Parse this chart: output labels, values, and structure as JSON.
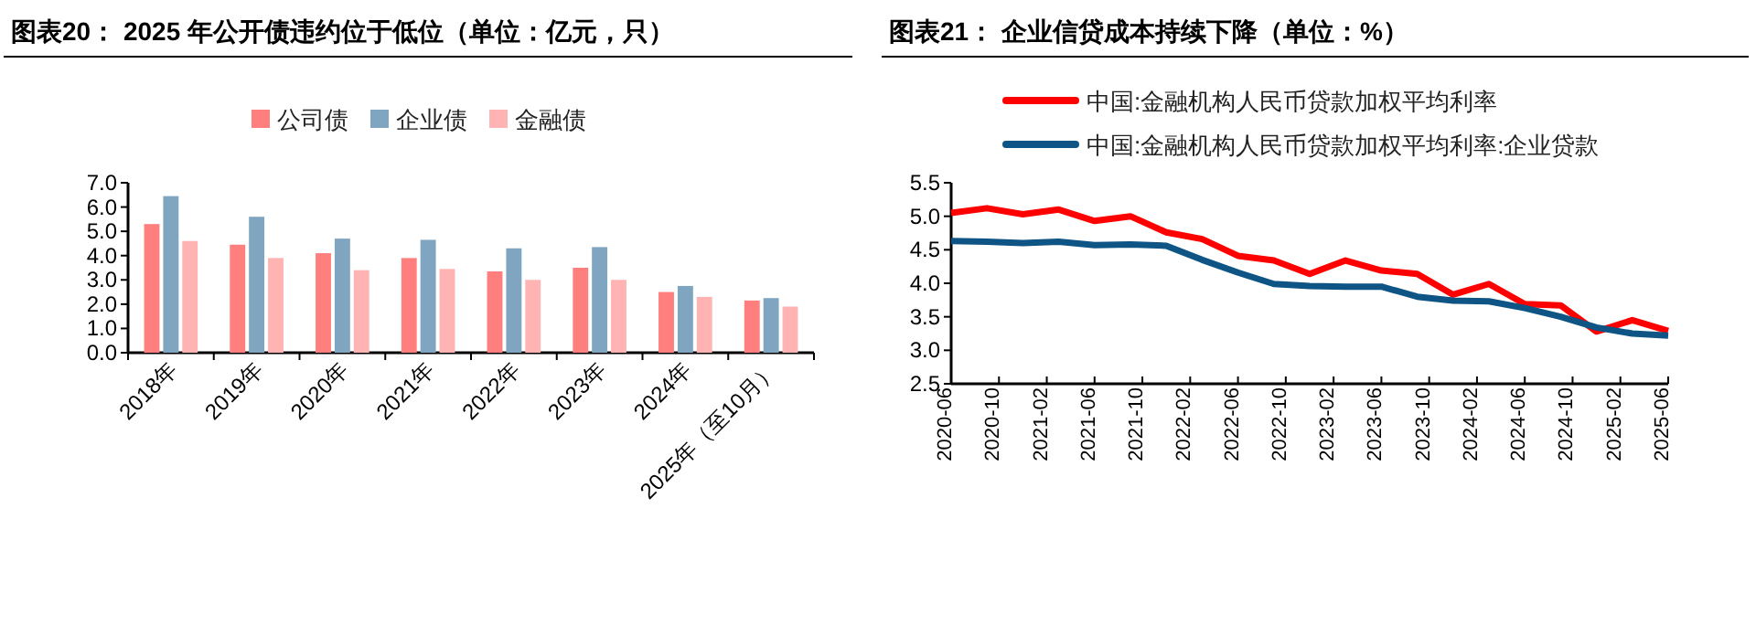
{
  "chart_data": [
    {
      "type": "bar",
      "title": "图表20： 2025 年公开债违约位于低位（单位：亿元，只）",
      "categories": [
        "2018年",
        "2019年",
        "2020年",
        "2021年",
        "2022年",
        "2023年",
        "2024年",
        "2025年（至10月）"
      ],
      "series": [
        {
          "name": "公司债",
          "color": "#ff7f7f",
          "values": [
            5.3,
            4.45,
            4.1,
            3.9,
            3.35,
            3.5,
            2.5,
            2.15
          ]
        },
        {
          "name": "企业债",
          "color": "#7fa5c0",
          "values": [
            6.45,
            5.6,
            4.7,
            4.65,
            4.3,
            4.35,
            2.75,
            2.25
          ]
        },
        {
          "name": "金融债",
          "color": "#ffb3b3",
          "values": [
            4.6,
            3.9,
            3.4,
            3.45,
            3.0,
            3.0,
            2.3,
            1.9
          ]
        }
      ],
      "ylim": [
        0,
        7
      ],
      "yticks": [
        {
          "value": 0,
          "label": "0.0"
        },
        {
          "value": 1,
          "label": "1.0"
        },
        {
          "value": 2,
          "label": "2.0"
        },
        {
          "value": 3,
          "label": "3.0"
        },
        {
          "value": 4,
          "label": "4.0"
        },
        {
          "value": 5,
          "label": "5.0"
        },
        {
          "value": 6,
          "label": "6.0"
        },
        {
          "value": 7,
          "label": "7.0"
        }
      ],
      "legend": "top",
      "grid": false
    },
    {
      "type": "line",
      "title": "图表21： 企业信贷成本持续下降（单位：%）",
      "x": [
        "2020-06",
        "2020-09",
        "2020-12",
        "2021-03",
        "2021-06",
        "2021-09",
        "2021-12",
        "2022-03",
        "2022-06",
        "2022-09",
        "2022-12",
        "2023-03",
        "2023-06",
        "2023-09",
        "2023-12",
        "2024-03",
        "2024-06",
        "2024-09",
        "2024-12",
        "2025-03",
        "2025-06"
      ],
      "series": [
        {
          "name": "中国:金融机构人民币贷款加权平均利率",
          "color": "#ff0000",
          "values": [
            5.05,
            5.12,
            5.03,
            5.1,
            4.93,
            5.0,
            4.76,
            4.66,
            4.41,
            4.34,
            4.14,
            4.34,
            4.19,
            4.14,
            3.83,
            3.99,
            3.69,
            3.67,
            3.28,
            3.45,
            3.29
          ]
        },
        {
          "name": "中国:金融机构人民币贷款加权平均利率:企业贷款",
          "color": "#0e5485",
          "values": [
            4.63,
            4.62,
            4.6,
            4.62,
            4.57,
            4.58,
            4.56,
            4.35,
            4.16,
            3.99,
            3.96,
            3.95,
            3.95,
            3.8,
            3.74,
            3.73,
            3.63,
            3.5,
            3.34,
            3.25,
            3.22
          ]
        }
      ],
      "xlim": [
        "2020-06",
        "2025-06"
      ],
      "xticks": [
        "2020-06",
        "2020-10",
        "2021-02",
        "2021-06",
        "2021-10",
        "2022-02",
        "2022-06",
        "2022-10",
        "2023-02",
        "2023-06",
        "2023-10",
        "2024-02",
        "2024-06",
        "2024-10",
        "2025-02",
        "2025-06"
      ],
      "ylim": [
        2.5,
        5.5
      ],
      "yticks": [
        2.5,
        {
          "value": 3,
          "label": "3.0"
        },
        3.5,
        {
          "value": 4,
          "label": "4.0"
        },
        4.5,
        {
          "value": 5,
          "label": "5.0"
        },
        5.5
      ],
      "legend": "top left",
      "grid": false,
      "line_style": "solid",
      "marker": "none"
    }
  ]
}
